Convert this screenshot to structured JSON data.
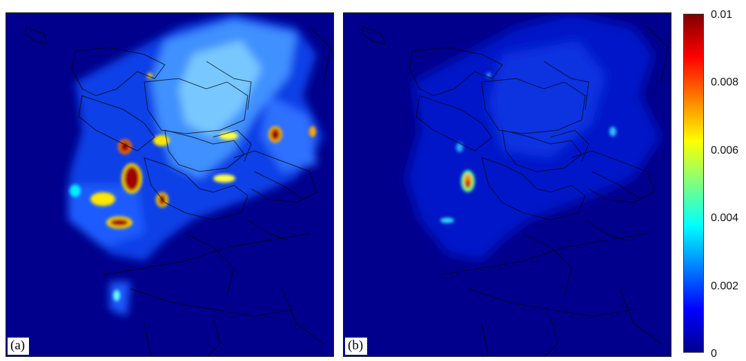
{
  "panels": [
    {
      "label": "(a)"
    },
    {
      "label": "(b)"
    }
  ],
  "colorbar": {
    "ticks": [
      "0.01",
      "0.008",
      "0.006",
      "0.004",
      "0.002",
      "0"
    ],
    "min": 0,
    "max": 0.01,
    "colormap": "jet",
    "colors": [
      "#00008f",
      "#0000ff",
      "#007fff",
      "#00ffff",
      "#7fff7f",
      "#ffff00",
      "#ff7f00",
      "#ff0000",
      "#7f0000"
    ]
  }
}
